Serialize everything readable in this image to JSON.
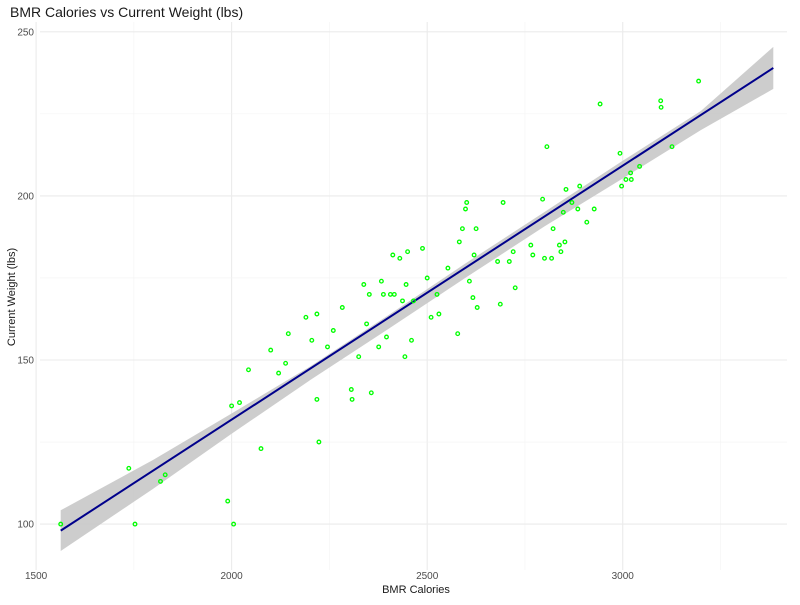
{
  "chart_data": {
    "type": "scatter",
    "title": "BMR Calories vs Current Weight (lbs)",
    "xlabel": "BMR Calories",
    "ylabel": "Current Weight (lbs)",
    "xlim": [
      1510,
      3420
    ],
    "ylim": [
      86,
      253
    ],
    "x_ticks": [
      1500,
      2000,
      2500,
      3000
    ],
    "y_ticks": [
      100,
      150,
      200,
      250
    ],
    "x_ticks_labels": [
      "1500",
      "2000",
      "2500",
      "3000"
    ],
    "y_ticks_labels": [
      "100",
      "150",
      "200",
      "250"
    ],
    "grid": true,
    "point_color": "#00ff00",
    "line_color": "#00008b",
    "band_color": "#c8c8c8",
    "points": [
      {
        "x": 1563,
        "y": 100
      },
      {
        "x": 1737,
        "y": 117
      },
      {
        "x": 1753,
        "y": 100
      },
      {
        "x": 1818,
        "y": 113
      },
      {
        "x": 1830,
        "y": 115
      },
      {
        "x": 1990,
        "y": 107
      },
      {
        "x": 2005,
        "y": 100
      },
      {
        "x": 2000,
        "y": 136
      },
      {
        "x": 2020,
        "y": 137
      },
      {
        "x": 2043,
        "y": 147
      },
      {
        "x": 2075,
        "y": 123
      },
      {
        "x": 2100,
        "y": 153
      },
      {
        "x": 2120,
        "y": 146
      },
      {
        "x": 2138,
        "y": 149
      },
      {
        "x": 2145,
        "y": 158
      },
      {
        "x": 2190,
        "y": 163
      },
      {
        "x": 2205,
        "y": 156
      },
      {
        "x": 2218,
        "y": 164
      },
      {
        "x": 2218,
        "y": 138
      },
      {
        "x": 2223,
        "y": 125
      },
      {
        "x": 2245,
        "y": 154
      },
      {
        "x": 2260,
        "y": 159
      },
      {
        "x": 2283,
        "y": 166
      },
      {
        "x": 2306,
        "y": 141
      },
      {
        "x": 2308,
        "y": 138
      },
      {
        "x": 2325,
        "y": 151
      },
      {
        "x": 2338,
        "y": 173
      },
      {
        "x": 2345,
        "y": 161
      },
      {
        "x": 2352,
        "y": 170
      },
      {
        "x": 2357,
        "y": 140
      },
      {
        "x": 2376,
        "y": 154
      },
      {
        "x": 2383,
        "y": 174
      },
      {
        "x": 2388,
        "y": 170
      },
      {
        "x": 2396,
        "y": 157
      },
      {
        "x": 2406,
        "y": 170
      },
      {
        "x": 2412,
        "y": 182
      },
      {
        "x": 2416,
        "y": 170
      },
      {
        "x": 2430,
        "y": 181
      },
      {
        "x": 2437,
        "y": 168
      },
      {
        "x": 2443,
        "y": 151
      },
      {
        "x": 2446,
        "y": 173
      },
      {
        "x": 2450,
        "y": 183
      },
      {
        "x": 2460,
        "y": 156
      },
      {
        "x": 2465,
        "y": 168
      },
      {
        "x": 2488,
        "y": 184
      },
      {
        "x": 2500,
        "y": 175
      },
      {
        "x": 2510,
        "y": 163
      },
      {
        "x": 2525,
        "y": 170
      },
      {
        "x": 2530,
        "y": 164
      },
      {
        "x": 2553,
        "y": 178
      },
      {
        "x": 2578,
        "y": 158
      },
      {
        "x": 2582,
        "y": 186
      },
      {
        "x": 2590,
        "y": 190
      },
      {
        "x": 2598,
        "y": 196
      },
      {
        "x": 2601,
        "y": 198
      },
      {
        "x": 2608,
        "y": 174
      },
      {
        "x": 2617,
        "y": 169
      },
      {
        "x": 2620,
        "y": 182
      },
      {
        "x": 2625,
        "y": 190
      },
      {
        "x": 2628,
        "y": 166
      },
      {
        "x": 2680,
        "y": 180
      },
      {
        "x": 2687,
        "y": 167
      },
      {
        "x": 2694,
        "y": 198
      },
      {
        "x": 2710,
        "y": 180
      },
      {
        "x": 2720,
        "y": 183
      },
      {
        "x": 2725,
        "y": 172
      },
      {
        "x": 2765,
        "y": 185
      },
      {
        "x": 2770,
        "y": 182
      },
      {
        "x": 2795,
        "y": 199
      },
      {
        "x": 2800,
        "y": 181
      },
      {
        "x": 2806,
        "y": 215
      },
      {
        "x": 2818,
        "y": 181
      },
      {
        "x": 2822,
        "y": 190
      },
      {
        "x": 2838,
        "y": 185
      },
      {
        "x": 2842,
        "y": 183
      },
      {
        "x": 2848,
        "y": 195
      },
      {
        "x": 2852,
        "y": 186
      },
      {
        "x": 2855,
        "y": 202
      },
      {
        "x": 2870,
        "y": 198
      },
      {
        "x": 2885,
        "y": 196
      },
      {
        "x": 2890,
        "y": 203
      },
      {
        "x": 2908,
        "y": 192
      },
      {
        "x": 2927,
        "y": 196
      },
      {
        "x": 2942,
        "y": 228
      },
      {
        "x": 2993,
        "y": 213
      },
      {
        "x": 2997,
        "y": 203
      },
      {
        "x": 3008,
        "y": 205
      },
      {
        "x": 3020,
        "y": 207
      },
      {
        "x": 3022,
        "y": 205
      },
      {
        "x": 3043,
        "y": 209
      },
      {
        "x": 3097,
        "y": 229
      },
      {
        "x": 3098,
        "y": 227
      },
      {
        "x": 3126,
        "y": 215
      },
      {
        "x": 3194,
        "y": 235
      }
    ],
    "fit_line": {
      "x": [
        1563,
        3385
      ],
      "y": [
        98,
        239
      ]
    },
    "confidence_band": {
      "x": [
        1563,
        1800,
        2000,
        2200,
        2400,
        2600,
        2800,
        3000,
        3200,
        3385
      ],
      "upper": [
        104.2,
        119.6,
        133.7,
        148.0,
        163.6,
        179.6,
        195.1,
        210.7,
        225.9,
        245.4
      ],
      "lower": [
        91.8,
        110.8,
        127.5,
        143.8,
        159.4,
        175.2,
        190.7,
        205.3,
        220.1,
        232.6
      ]
    }
  }
}
